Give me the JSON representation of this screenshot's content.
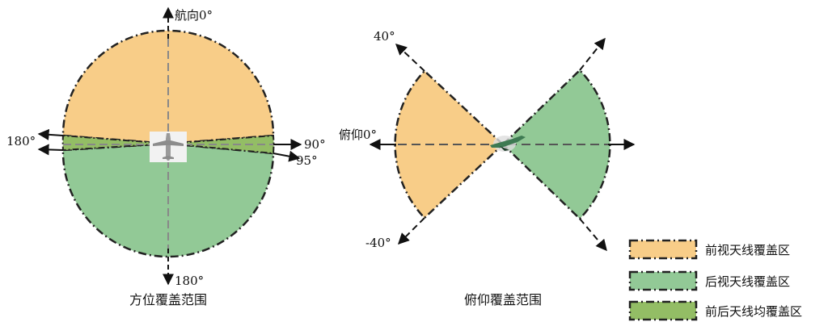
{
  "colors": {
    "front": "#f8cd88",
    "rear": "#92c996",
    "both": "#93bd65",
    "outline": "#222222",
    "axis": "#888888"
  },
  "azimuth": {
    "heading_label": "航向0°",
    "left_label": "180°",
    "right_top_label": "90°",
    "right_bottom_label": "95°",
    "bottom_label": "180°",
    "caption": "方位覆盖范围",
    "icon": "aircraft-top-view-icon"
  },
  "elevation": {
    "top_label": "40°",
    "zero_label": "俯仰0°",
    "bottom_label": "-40°",
    "caption": "俯仰覆盖范围",
    "icon": "aircraft-side-view-icon"
  },
  "legend": {
    "items": [
      {
        "label": "前视天线覆盖区",
        "color_key": "front"
      },
      {
        "label": "后视天线覆盖区",
        "color_key": "rear"
      },
      {
        "label": "前后天线均覆盖区",
        "color_key": "both"
      }
    ]
  }
}
